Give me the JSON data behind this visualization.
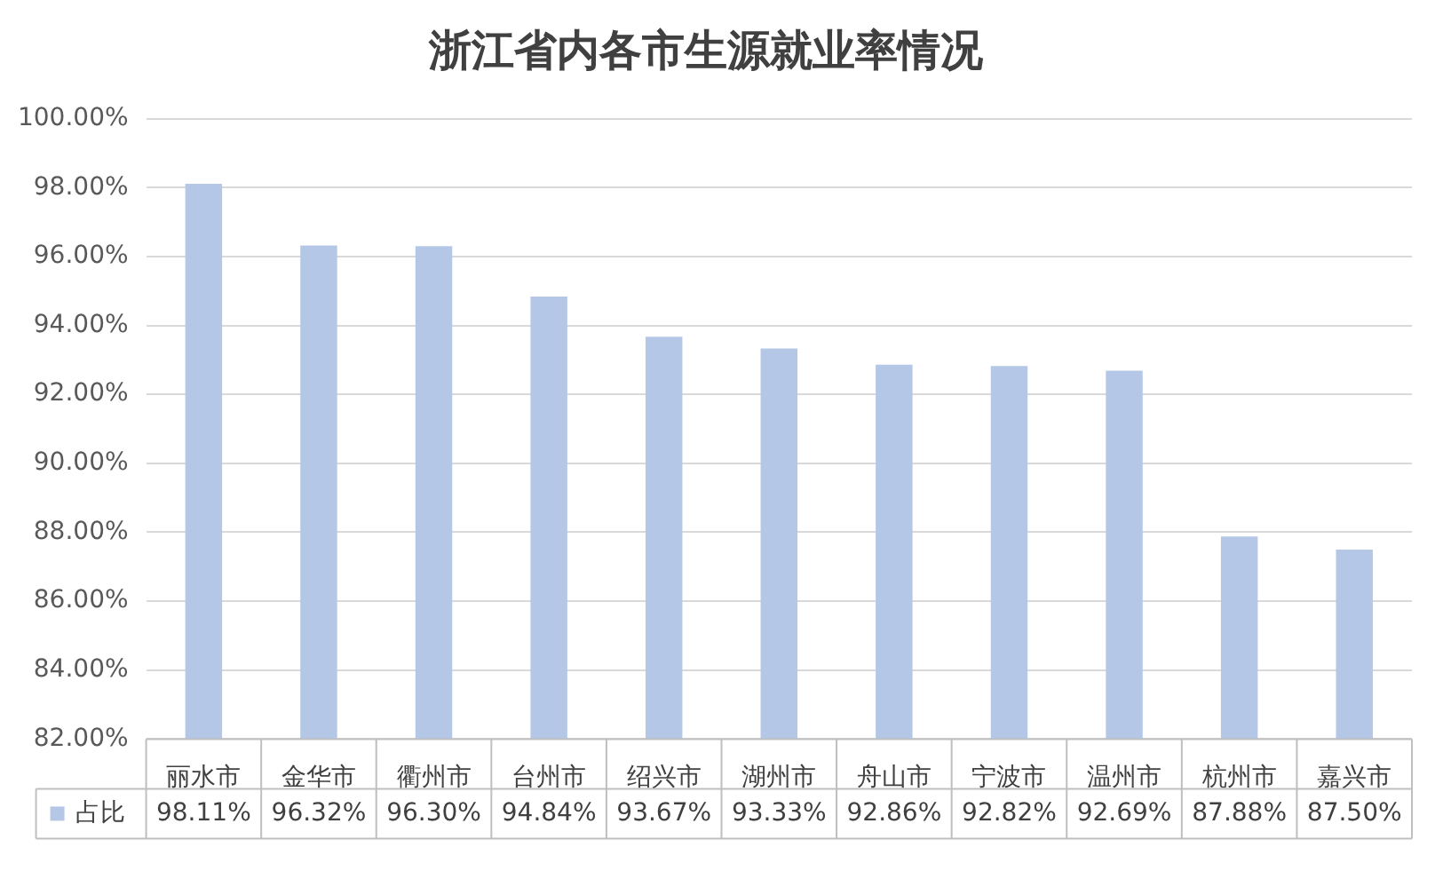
{
  "chart_data": {
    "type": "bar",
    "title": "浙江省内各市生源就业率情况",
    "categories": [
      "丽水市",
      "金华市",
      "衢州市",
      "台州市",
      "绍兴市",
      "湖州市",
      "舟山市",
      "宁波市",
      "温州市",
      "杭州市",
      "嘉兴市"
    ],
    "series": [
      {
        "name": "占比",
        "color": "#b4c7e7",
        "values": [
          98.11,
          96.32,
          96.3,
          94.84,
          93.67,
          93.33,
          92.86,
          92.82,
          92.69,
          87.88,
          87.5
        ],
        "value_labels": [
          "98.11%",
          "96.32%",
          "96.30%",
          "94.84%",
          "93.67%",
          "93.33%",
          "92.86%",
          "92.82%",
          "92.69%",
          "87.88%",
          "87.50%"
        ]
      }
    ],
    "ylim": [
      82,
      100
    ],
    "yticks": [
      {
        "value": 82,
        "label": "82.00%"
      },
      {
        "value": 84,
        "label": "84.00%"
      },
      {
        "value": 86,
        "label": "86.00%"
      },
      {
        "value": 88,
        "label": "88.00%"
      },
      {
        "value": 90,
        "label": "90.00%"
      },
      {
        "value": 92,
        "label": "92.00%"
      },
      {
        "value": 94,
        "label": "94.00%"
      },
      {
        "value": 96,
        "label": "96.00%"
      },
      {
        "value": 98,
        "label": "98.00%"
      },
      {
        "value": 100,
        "label": "100.00%"
      }
    ],
    "grid": "y",
    "legend": "bottom"
  }
}
